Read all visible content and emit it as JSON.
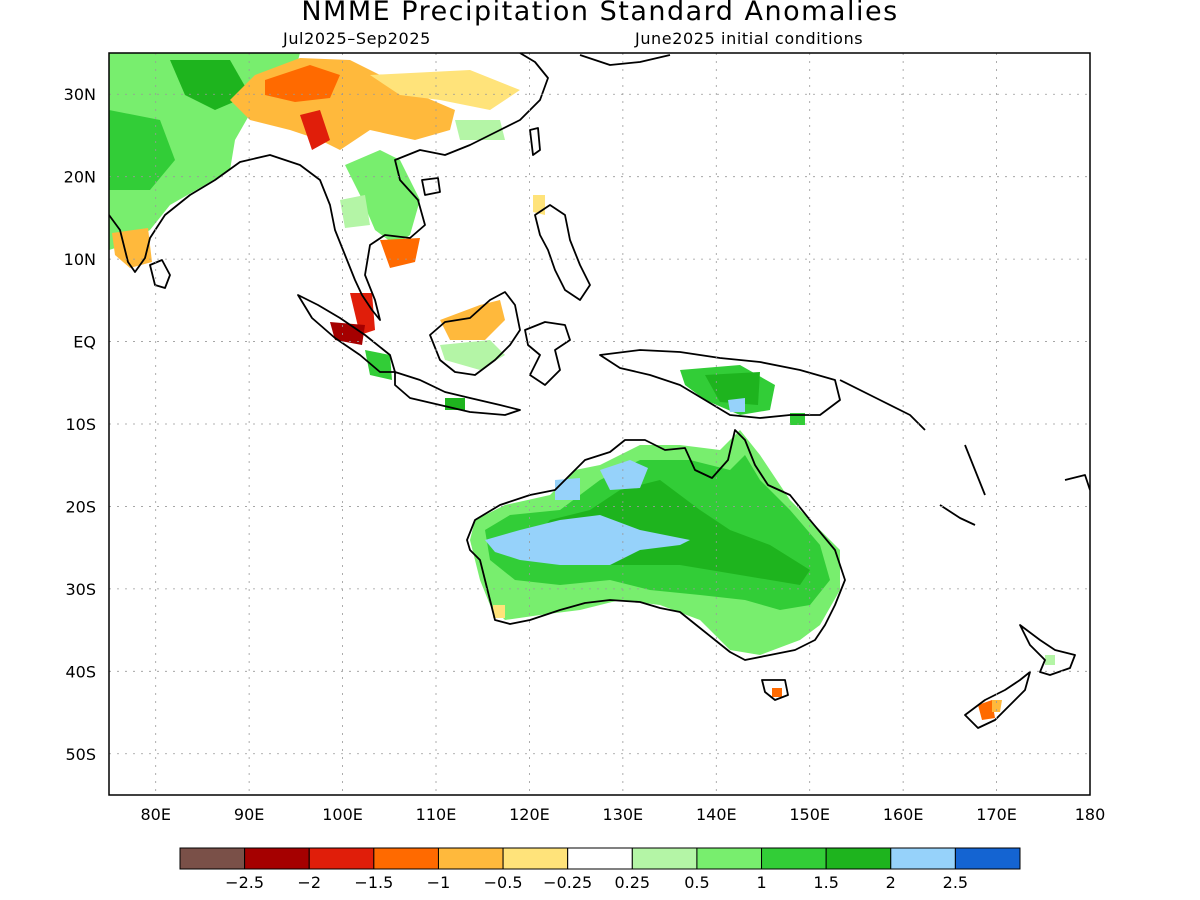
{
  "title": "NMME Precipitation Standard Anomalies",
  "subtitle_left": "Jul2025–Sep2025",
  "subtitle_right": "June2025 initial conditions",
  "map": {
    "lon_range": [
      75,
      180
    ],
    "lat_range": [
      -55,
      35
    ],
    "lat_ticks": [
      {
        "value": 30,
        "label": "30N"
      },
      {
        "value": 20,
        "label": "20N"
      },
      {
        "value": 10,
        "label": "10N"
      },
      {
        "value": 0,
        "label": "EQ"
      },
      {
        "value": -10,
        "label": "10S"
      },
      {
        "value": -20,
        "label": "20S"
      },
      {
        "value": -30,
        "label": "30S"
      },
      {
        "value": -40,
        "label": "40S"
      },
      {
        "value": -50,
        "label": "50S"
      }
    ],
    "lon_ticks": [
      {
        "value": 80,
        "label": "80E"
      },
      {
        "value": 90,
        "label": "90E"
      },
      {
        "value": 100,
        "label": "100E"
      },
      {
        "value": 110,
        "label": "110E"
      },
      {
        "value": 120,
        "label": "120E"
      },
      {
        "value": 130,
        "label": "130E"
      },
      {
        "value": 140,
        "label": "140E"
      },
      {
        "value": 150,
        "label": "150E"
      },
      {
        "value": 160,
        "label": "160E"
      },
      {
        "value": 170,
        "label": "170E"
      },
      {
        "value": 180,
        "label": "180"
      }
    ],
    "grid": "dotted"
  },
  "legend": {
    "colors": [
      "#7a5048",
      "#a50000",
      "#e01e0a",
      "#ff6a00",
      "#ffb93c",
      "#ffe37a",
      "#ffffff",
      "#b4f5a6",
      "#78ee6e",
      "#32cd37",
      "#1eb41e",
      "#96d2fa",
      "#1464d2"
    ],
    "labels": [
      "−2.5",
      "−2",
      "−1.5",
      "−1",
      "−0.5",
      "−0.25",
      "0.25",
      "0.5",
      "1",
      "1.5",
      "2",
      "2.5"
    ]
  }
}
